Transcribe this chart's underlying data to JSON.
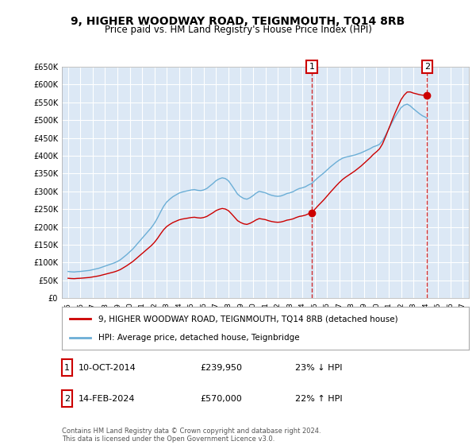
{
  "title": "9, HIGHER WOODWAY ROAD, TEIGNMOUTH, TQ14 8RB",
  "subtitle": "Price paid vs. HM Land Registry's House Price Index (HPI)",
  "legend_line1": "9, HIGHER WOODWAY ROAD, TEIGNMOUTH, TQ14 8RB (detached house)",
  "legend_line2": "HPI: Average price, detached house, Teignbridge",
  "sale1_label": "1",
  "sale1_date": "10-OCT-2014",
  "sale1_price": "£239,950",
  "sale1_hpi": "23% ↓ HPI",
  "sale2_label": "2",
  "sale2_date": "14-FEB-2024",
  "sale2_price": "£570,000",
  "sale2_hpi": "22% ↑ HPI",
  "footer": "Contains HM Land Registry data © Crown copyright and database right 2024.\nThis data is licensed under the Open Government Licence v3.0.",
  "hpi_color": "#6baed6",
  "price_color": "#cc0000",
  "bg_color": "#e8f0f8",
  "plot_bg": "#dce8f5",
  "grid_color": "#ffffff",
  "ylim": [
    0,
    650000
  ],
  "yticks": [
    0,
    50000,
    100000,
    150000,
    200000,
    250000,
    300000,
    350000,
    400000,
    450000,
    500000,
    550000,
    600000,
    650000
  ],
  "xlim_start": 1994.5,
  "xlim_end": 2027.5,
  "sale1_x": 2014.78,
  "sale1_y": 239950,
  "sale2_x": 2024.12,
  "sale2_y": 570000
}
